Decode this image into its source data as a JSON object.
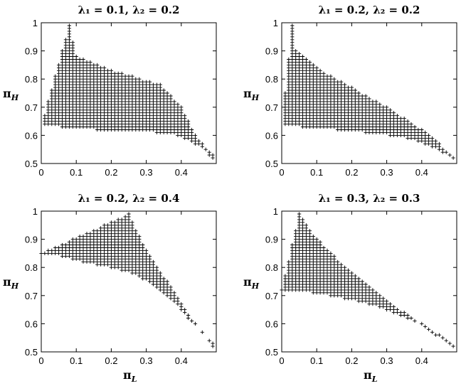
{
  "chart_data": [
    {
      "type": "scatter",
      "title": "λ₁ = 0.1, λ₂ = 0.2",
      "xlabel": "",
      "ylabel": "πH",
      "xlim": [
        0,
        0.5
      ],
      "ylim": [
        0.5,
        1.0
      ],
      "xticks": [
        "0",
        "0.1",
        "0.2",
        "0.3",
        "0.4"
      ],
      "yticks": [
        "0.5",
        "0.6",
        "0.7",
        "0.8",
        "0.9",
        "1"
      ],
      "marker": "+",
      "grid_step": 0.01,
      "region": [
        [
          0,
          0.635
        ],
        [
          0.08,
          0.99
        ],
        [
          0.1,
          0.88
        ],
        [
          0.18,
          0.84
        ],
        [
          0.26,
          0.81
        ],
        [
          0.34,
          0.78
        ],
        [
          0.4,
          0.7
        ],
        [
          0.44,
          0.6
        ],
        [
          0.49,
          0.53
        ]
      ],
      "lower_boundary": [
        [
          0,
          0.635
        ],
        [
          0.04,
          0.635
        ],
        [
          0.08,
          0.625
        ],
        [
          0.16,
          0.62
        ],
        [
          0.28,
          0.615
        ],
        [
          0.38,
          0.605
        ],
        [
          0.42,
          0.585
        ],
        [
          0.46,
          0.555
        ],
        [
          0.49,
          0.515
        ]
      ]
    },
    {
      "type": "scatter",
      "title": "λ₁ = 0.2, λ₂ = 0.2",
      "xlabel": "",
      "ylabel": "πH",
      "xlim": [
        0,
        0.5
      ],
      "ylim": [
        0.5,
        1.0
      ],
      "xticks": [
        "0",
        "0.1",
        "0.2",
        "0.3",
        "0.4"
      ],
      "yticks": [
        "0.5",
        "0.6",
        "0.7",
        "0.8",
        "0.9",
        "1"
      ],
      "marker": "+",
      "grid_step": 0.01,
      "region": [
        [
          0,
          0.635
        ],
        [
          0.03,
          0.99
        ],
        [
          0.04,
          0.9
        ],
        [
          0.1,
          0.84
        ],
        [
          0.2,
          0.77
        ],
        [
          0.3,
          0.7
        ],
        [
          0.4,
          0.62
        ],
        [
          0.45,
          0.57
        ],
        [
          0.49,
          0.52
        ]
      ],
      "lower_boundary": [
        [
          0,
          0.635
        ],
        [
          0.06,
          0.63
        ],
        [
          0.16,
          0.62
        ],
        [
          0.28,
          0.605
        ],
        [
          0.36,
          0.59
        ],
        [
          0.42,
          0.565
        ],
        [
          0.46,
          0.54
        ],
        [
          0.49,
          0.515
        ]
      ]
    },
    {
      "type": "scatter",
      "title": "λ₁ = 0.2, λ₂ = 0.4",
      "xlabel": "πL",
      "ylabel": "πH",
      "xlim": [
        0,
        0.5
      ],
      "ylim": [
        0.5,
        1.0
      ],
      "xticks": [
        "0",
        "0.1",
        "0.2",
        "0.3",
        "0.4"
      ],
      "yticks": [
        "0.5",
        "0.6",
        "0.7",
        "0.8",
        "0.9",
        "1"
      ],
      "marker": "+",
      "grid_step": 0.01,
      "region": [
        [
          0,
          0.85
        ],
        [
          0.25,
          0.99
        ],
        [
          0.3,
          0.86
        ],
        [
          0.36,
          0.75
        ],
        [
          0.42,
          0.63
        ],
        [
          0.46,
          0.57
        ],
        [
          0.49,
          0.53
        ]
      ],
      "lower_boundary": [
        [
          0,
          0.85
        ],
        [
          0.06,
          0.84
        ],
        [
          0.12,
          0.82
        ],
        [
          0.2,
          0.8
        ],
        [
          0.26,
          0.78
        ],
        [
          0.32,
          0.74
        ],
        [
          0.38,
          0.68
        ],
        [
          0.42,
          0.62
        ],
        [
          0.46,
          0.57
        ],
        [
          0.49,
          0.52
        ]
      ]
    },
    {
      "type": "scatter",
      "title": "λ₁ = 0.3, λ₂ = 0.3",
      "xlabel": "πL",
      "ylabel": "πH",
      "xlim": [
        0,
        0.5
      ],
      "ylim": [
        0.5,
        1.0
      ],
      "xticks": [
        "0",
        "0.1",
        "0.2",
        "0.3",
        "0.4"
      ],
      "yticks": [
        "0.5",
        "0.6",
        "0.7",
        "0.8",
        "0.9",
        "1"
      ],
      "marker": "+",
      "grid_step": 0.01,
      "region": [
        [
          0,
          0.72
        ],
        [
          0.05,
          0.99
        ],
        [
          0.08,
          0.93
        ],
        [
          0.15,
          0.84
        ],
        [
          0.25,
          0.73
        ],
        [
          0.35,
          0.64
        ],
        [
          0.45,
          0.56
        ],
        [
          0.49,
          0.52
        ]
      ],
      "lower_boundary": [
        [
          0,
          0.72
        ],
        [
          0.06,
          0.715
        ],
        [
          0.14,
          0.7
        ],
        [
          0.22,
          0.68
        ],
        [
          0.3,
          0.65
        ],
        [
          0.38,
          0.61
        ],
        [
          0.44,
          0.56
        ],
        [
          0.49,
          0.515
        ]
      ]
    }
  ]
}
